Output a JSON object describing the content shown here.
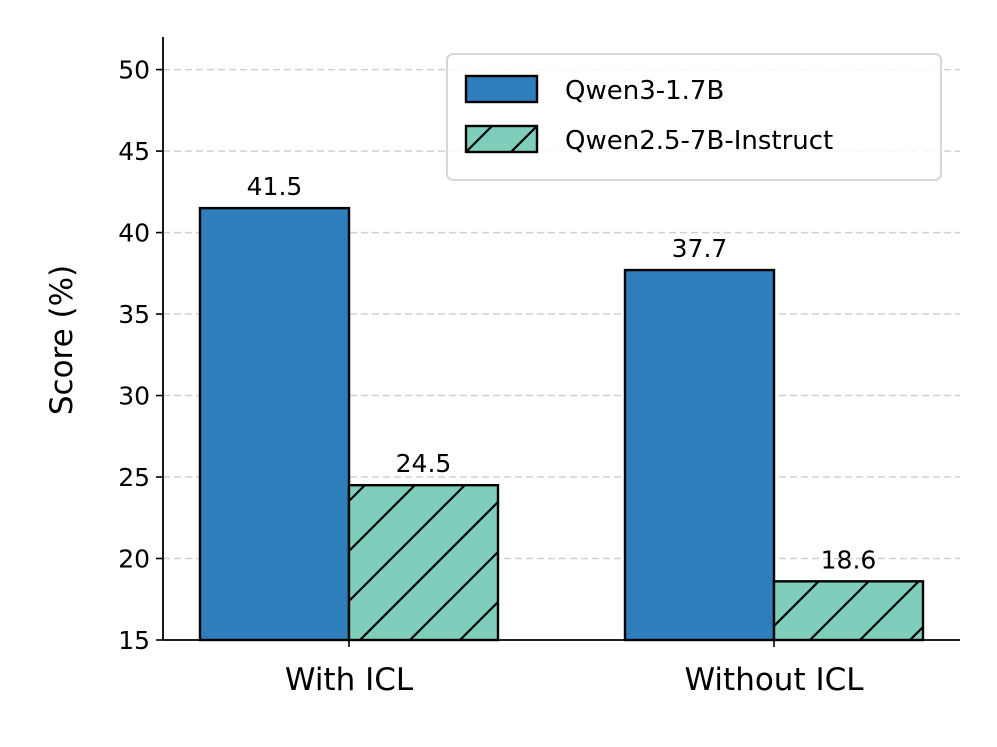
{
  "chart_data": {
    "type": "bar",
    "title": "",
    "xlabel": "",
    "ylabel": "Score (%)",
    "ylim": [
      15,
      52
    ],
    "yticks": [
      15,
      20,
      25,
      30,
      35,
      40,
      45,
      50
    ],
    "grid": {
      "y": true,
      "style": "dashed"
    },
    "legend_placement": "top-right",
    "categories": [
      "With ICL",
      "Without ICL"
    ],
    "series": [
      {
        "name": "Qwen3-1.7B",
        "values": [
          41.5,
          37.7
        ],
        "labels": [
          "41.5",
          "37.7"
        ],
        "color": "#2e7ebb",
        "hatch": false
      },
      {
        "name": "Qwen2.5-7B-Instruct",
        "values": [
          24.5,
          18.6
        ],
        "labels": [
          "24.5",
          "18.6"
        ],
        "color": "#7fcdbb",
        "hatch": true
      }
    ]
  }
}
